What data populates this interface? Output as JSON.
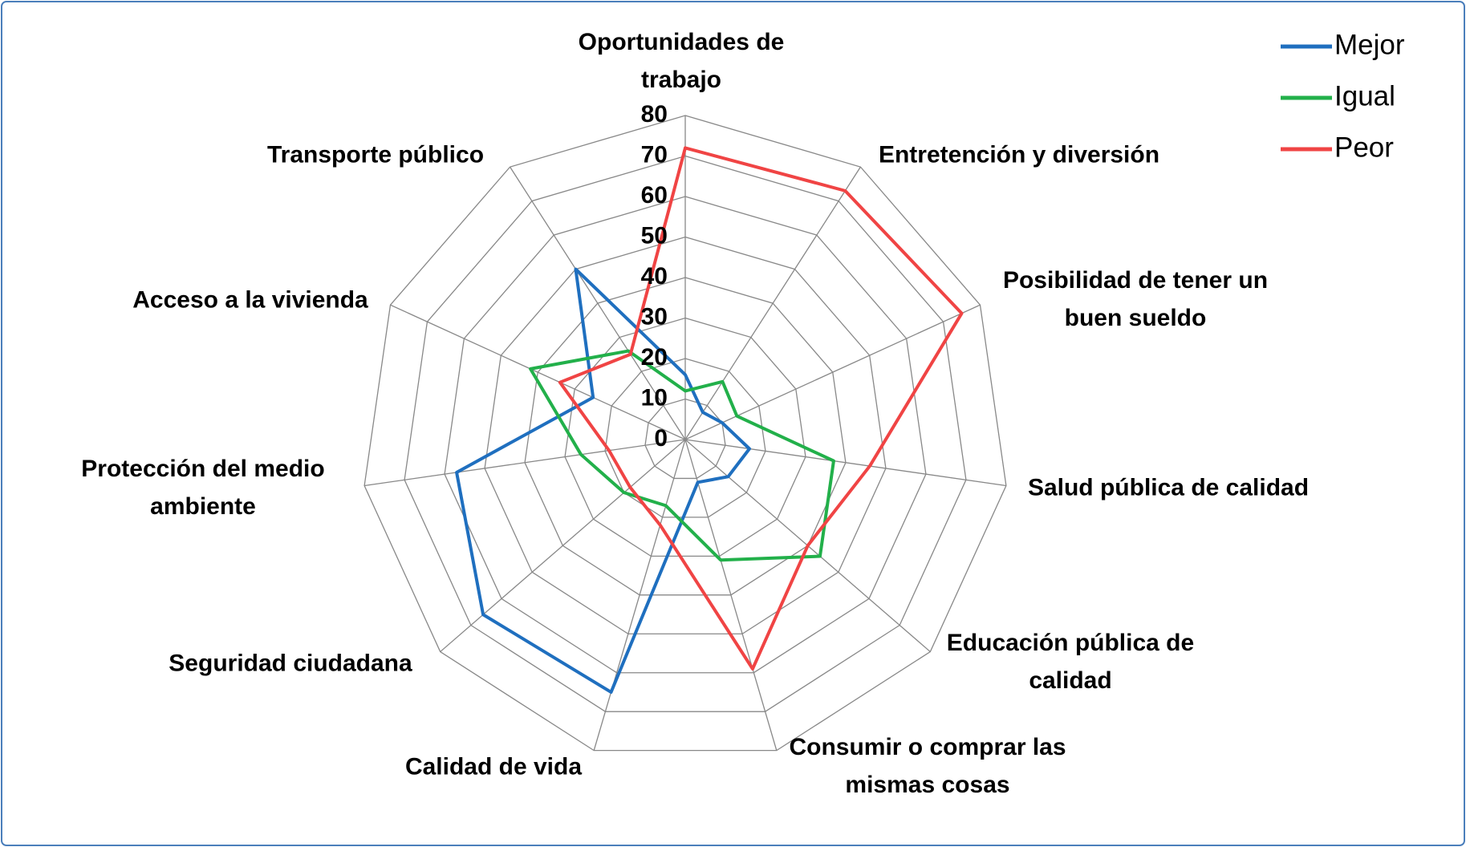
{
  "chart_data": {
    "type": "radar",
    "categories": [
      "Oportunidades de trabajo",
      "Entretención y diversión",
      "Posibilidad de tener un buen sueldo",
      "Salud pública de calidad",
      "Educación pública de calidad",
      "Consumir o comprar las mismas cosas",
      "Calidad de vida",
      "Seguridad ciudadana",
      "Protección del medio ambiente",
      "Acceso a la vivienda",
      "Transporte público"
    ],
    "series": [
      {
        "name": "Mejor",
        "color": "#1f6fbf",
        "values": [
          16,
          8,
          10,
          16,
          14,
          11,
          65,
          66,
          57,
          25,
          50
        ]
      },
      {
        "name": "Igual",
        "color": "#22b04a",
        "values": [
          12,
          17,
          14,
          37,
          44,
          31,
          17,
          20,
          26,
          42,
          26
        ]
      },
      {
        "name": "Peor",
        "color": "#f04444",
        "values": [
          72,
          73,
          75,
          46,
          40,
          59,
          22,
          18,
          19,
          34,
          25
        ]
      }
    ],
    "ylim": [
      0,
      80
    ],
    "yticks": [
      0,
      10,
      20,
      30,
      40,
      50,
      60,
      70,
      80
    ],
    "grid": true,
    "legend": "top-right"
  }
}
